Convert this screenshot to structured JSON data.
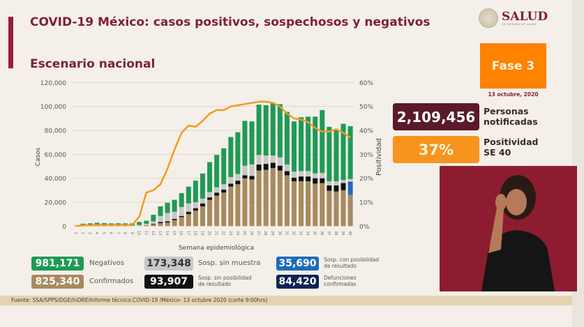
{
  "header": {
    "title": "COVID-19 México: casos positivos, sospechosos y negativos",
    "subtitle": "Escenario nacional"
  },
  "logo": {
    "name": "SALUD",
    "sub": "SECRETARÍA DE SALUD"
  },
  "phase": {
    "label": "Fase 3",
    "date": "13 octubre, 2020",
    "color": "#ff8200"
  },
  "kpis": [
    {
      "value": "2,109,456",
      "label1": "Personas",
      "label2": "notificadas",
      "color": "#5a1a2b"
    },
    {
      "value": "37%",
      "label1": "Positividad",
      "label2": "SE 40",
      "color": "#f7941d"
    }
  ],
  "stats": [
    {
      "value": "981,171",
      "label": "Negativos",
      "color": "#1f9a55"
    },
    {
      "value": "173,348",
      "label": "Sosp. sin muestra",
      "color": "#c8c8c8"
    },
    {
      "value": "35,690",
      "label1": "Sosp. con posibilidad",
      "label2": "de resultado",
      "color": "#1d6bbd"
    },
    {
      "value": "825,340",
      "label": "Confirmados",
      "color": "#a88a5f"
    },
    {
      "value": "93,907",
      "label1": "Sosp. sin posibilidad",
      "label2": "de resultado",
      "color": "#111111"
    },
    {
      "value": "84,420",
      "label1": "Defunciones",
      "label2": "confirmadas",
      "color": "#0d2354"
    }
  ],
  "footer": "Fuente: SSA/SPPS/DGE/InDRE/Informe técnico.COVID-19 /México- 13 octubre 2020 (corte 9:00hrs)",
  "chart_data": {
    "type": "bar",
    "stacked": true,
    "xlabel": "Semana epidemiológica",
    "ylabel": "Casos",
    "y2label": "Positividad",
    "ylim": [
      0,
      120000
    ],
    "y2lim": [
      0,
      60
    ],
    "yticks": [
      "0",
      "20,000",
      "40,000",
      "60,000",
      "80,000",
      "100,000",
      "120,000"
    ],
    "y2ticks": [
      "0%",
      "10%",
      "20%",
      "30%",
      "40%",
      "50%",
      "60%"
    ],
    "grid": true,
    "categories": [
      "1",
      "2",
      "3",
      "4",
      "5",
      "6",
      "7",
      "8",
      "9",
      "10",
      "11",
      "12",
      "13",
      "14",
      "15",
      "16",
      "17",
      "18",
      "19",
      "20",
      "21",
      "22",
      "23",
      "24",
      "25",
      "26",
      "27",
      "28",
      "29",
      "30",
      "31",
      "32",
      "33",
      "34",
      "35",
      "36",
      "37",
      "38",
      "39",
      "40"
    ],
    "series": [
      {
        "key": "confirmados",
        "color": "#a88a5f",
        "values": [
          0,
          200,
          200,
          300,
          200,
          200,
          200,
          200,
          200,
          300,
          800,
          1500,
          2500,
          3000,
          5000,
          7500,
          10000,
          13000,
          16500,
          22000,
          25500,
          28000,
          33000,
          35000,
          40000,
          39000,
          46500,
          47000,
          48500,
          46500,
          42500,
          37500,
          37500,
          37500,
          35500,
          36000,
          29500,
          29000,
          30000,
          26000
        ]
      },
      {
        "key": "sosp_con_posibilidad",
        "color": "#1d6bbd",
        "values": [
          0,
          0,
          0,
          0,
          0,
          0,
          0,
          0,
          0,
          0,
          0,
          0,
          0,
          0,
          0,
          0,
          0,
          0,
          0,
          0,
          0,
          0,
          0,
          0,
          0,
          0,
          0,
          0,
          0,
          0,
          0,
          0,
          0,
          0,
          0,
          0,
          0,
          0,
          0,
          10500
        ]
      },
      {
        "key": "sosp_sin_posibilidad",
        "color": "#111111",
        "values": [
          0,
          0,
          0,
          0,
          0,
          0,
          0,
          0,
          0,
          0,
          0,
          500,
          1000,
          1000,
          1000,
          1000,
          2000,
          2000,
          2500,
          2000,
          2500,
          2500,
          2500,
          3000,
          2500,
          3000,
          5000,
          5000,
          4500,
          4000,
          3500,
          3000,
          4000,
          4000,
          4500,
          4000,
          4500,
          5000,
          6000,
          500
        ]
      },
      {
        "key": "sosp_sin_muestra",
        "color": "#c8c8c8",
        "values": [
          200,
          300,
          300,
          300,
          300,
          300,
          300,
          300,
          300,
          700,
          1200,
          2000,
          5000,
          7000,
          6000,
          7500,
          7000,
          5000,
          4000,
          4500,
          4500,
          4500,
          5500,
          5500,
          8000,
          9500,
          8000,
          7000,
          6000,
          7000,
          5500,
          5000,
          4500,
          4500,
          4000,
          4500,
          3500,
          3500,
          2500,
          2500
        ]
      },
      {
        "key": "negativos",
        "color": "#1f9a55",
        "values": [
          300,
          1500,
          1800,
          2200,
          2000,
          1800,
          1900,
          1800,
          1800,
          2500,
          2500,
          5500,
          8000,
          8500,
          10000,
          11500,
          14000,
          18000,
          21000,
          25000,
          27000,
          30000,
          33500,
          35000,
          37500,
          36000,
          42000,
          42000,
          44000,
          44500,
          44000,
          42000,
          45000,
          45500,
          47500,
          52500,
          45500,
          42500,
          47000,
          44000
        ]
      }
    ],
    "line": {
      "key": "positividad",
      "color": "#f39a1e",
      "axis": "right",
      "values": [
        0,
        0.3,
        0.3,
        0.4,
        0.4,
        0.4,
        0.4,
        0.4,
        0.5,
        4,
        14,
        15,
        17.5,
        24,
        32,
        39,
        42,
        41.5,
        44,
        47,
        48.5,
        48.5,
        50,
        50.5,
        51,
        51.5,
        52,
        52,
        51.5,
        50,
        47,
        45,
        44.5,
        43.5,
        41,
        39.5,
        39.5,
        40.5,
        39,
        37
      ]
    }
  }
}
